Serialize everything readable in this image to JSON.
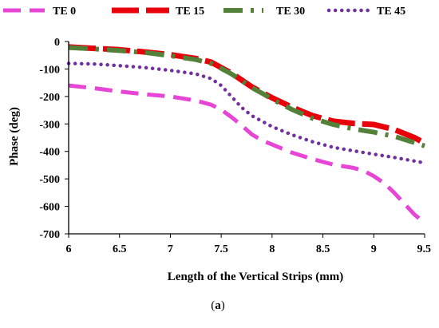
{
  "chart_data": {
    "type": "line",
    "title": "",
    "xlabel": "Length of the Vertical Strips (mm)",
    "ylabel": "Phase  (deg)",
    "xlim": [
      6,
      9.5
    ],
    "ylim": [
      -700,
      0
    ],
    "x_ticks": [
      "6",
      "6.5",
      "7",
      "7.5",
      "8",
      "8.5",
      "9",
      "9.5"
    ],
    "y_ticks": [
      "0",
      "-100",
      "-200",
      "-300",
      "-400",
      "-500",
      "-600",
      "-700"
    ],
    "grid": false,
    "legend_position": "top",
    "caption": {
      "open": "(",
      "letter": "a",
      "close": ")"
    },
    "series": [
      {
        "name": "TE 0",
        "color": "#e645d6",
        "style": "long-dash",
        "x": [
          6.0,
          6.25,
          6.5,
          6.75,
          7.0,
          7.25,
          7.4,
          7.5,
          7.6,
          7.7,
          7.8,
          7.9,
          8.0,
          8.2,
          8.4,
          8.6,
          8.8,
          8.9,
          9.0,
          9.1,
          9.2,
          9.3,
          9.4,
          9.5
        ],
        "y": [
          -160,
          -170,
          -182,
          -192,
          -200,
          -215,
          -230,
          -248,
          -275,
          -305,
          -338,
          -360,
          -375,
          -405,
          -428,
          -448,
          -460,
          -470,
          -490,
          -515,
          -550,
          -590,
          -630,
          -660
        ]
      },
      {
        "name": "TE 15",
        "color": "#e8000b",
        "style": "thick-dash",
        "x": [
          6.0,
          6.25,
          6.5,
          6.75,
          7.0,
          7.25,
          7.4,
          7.5,
          7.6,
          7.7,
          7.8,
          7.9,
          8.0,
          8.2,
          8.4,
          8.6,
          8.8,
          9.0,
          9.2,
          9.4,
          9.5
        ],
        "y": [
          -20,
          -25,
          -30,
          -38,
          -48,
          -62,
          -75,
          -95,
          -115,
          -140,
          -165,
          -185,
          -205,
          -240,
          -270,
          -290,
          -298,
          -302,
          -320,
          -350,
          -370
        ]
      },
      {
        "name": "TE 30",
        "color": "#54813a",
        "style": "dash-dot",
        "x": [
          6.0,
          6.25,
          6.5,
          6.75,
          7.0,
          7.25,
          7.4,
          7.5,
          7.6,
          7.7,
          7.8,
          7.9,
          8.0,
          8.2,
          8.4,
          8.6,
          8.8,
          9.0,
          9.2,
          9.4,
          9.5
        ],
        "y": [
          -22,
          -27,
          -33,
          -40,
          -52,
          -66,
          -80,
          -98,
          -118,
          -142,
          -168,
          -188,
          -210,
          -248,
          -280,
          -302,
          -318,
          -330,
          -345,
          -368,
          -380
        ]
      },
      {
        "name": "TE 45",
        "color": "#7030a0",
        "style": "dotted",
        "x": [
          6.0,
          6.25,
          6.5,
          6.75,
          7.0,
          7.25,
          7.4,
          7.5,
          7.6,
          7.7,
          7.8,
          7.9,
          8.0,
          8.2,
          8.4,
          8.6,
          8.8,
          9.0,
          9.2,
          9.4,
          9.5
        ],
        "y": [
          -80,
          -82,
          -88,
          -95,
          -105,
          -118,
          -135,
          -160,
          -200,
          -240,
          -270,
          -290,
          -310,
          -340,
          -365,
          -385,
          -398,
          -410,
          -422,
          -435,
          -442
        ]
      }
    ]
  }
}
